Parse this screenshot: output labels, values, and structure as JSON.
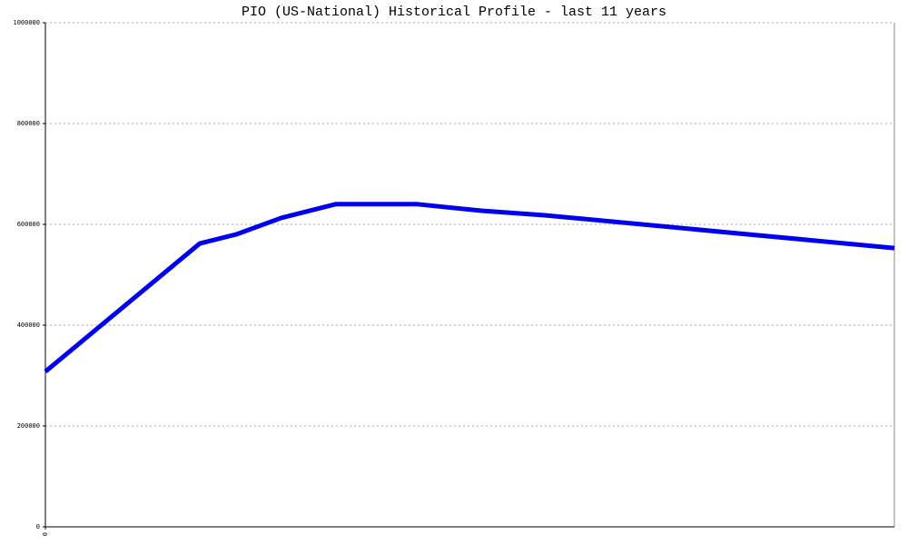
{
  "chart_data": {
    "type": "line",
    "title": "PIO (US-National) Historical Profile - last 11 years",
    "x": [
      0,
      2,
      2.47,
      3.06,
      3.76,
      4.82,
      5.65,
      6.47,
      11
    ],
    "xlim": [
      0,
      11
    ],
    "xticks": [
      0
    ],
    "series": [
      {
        "name": "PIO",
        "color": "#0000ee",
        "values": [
          308000,
          562000,
          580000,
          613000,
          640000,
          640000,
          627000,
          618000,
          553000
        ]
      }
    ],
    "ylim": [
      0,
      1000000
    ],
    "yticks": [
      0,
      200000,
      400000,
      600000,
      800000,
      1000000
    ],
    "grid": true,
    "legend": false
  }
}
